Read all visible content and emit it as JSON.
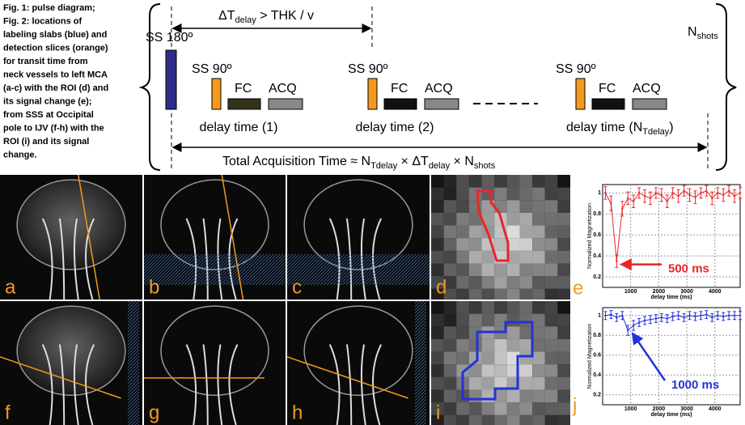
{
  "caption": {
    "lines": [
      "Fig. 1: pulse diagram;",
      "Fig. 2: locations of",
      "labeling slabs (blue) and",
      "detection slices (orange)",
      "for transit time from",
      "neck vessels to left MCA",
      "(a-c) with the ROI (d) and",
      "its signal change (e);",
      "from SSS at Occipital",
      "pole to IJV (f-h) with the",
      "ROI (i) and its signal",
      "change."
    ]
  },
  "pulse": {
    "ss180": "SS 180º",
    "delta": {
      "a": "ΔT",
      "sub": "delay",
      "b": " > THK / v"
    },
    "ss90": [
      "SS 90º",
      "SS 90º",
      "SS 90º"
    ],
    "fc": [
      "FC",
      "FC",
      "FC"
    ],
    "acq": [
      "ACQ",
      "ACQ",
      "ACQ"
    ],
    "delays": [
      "delay time (1)",
      "delay time (2)"
    ],
    "delay_n": {
      "a": "delay time (N",
      "sub": "Tdelay",
      "b": ")"
    },
    "nshots": {
      "a": "N",
      "sub": "shots"
    },
    "total": {
      "a": "Total Acquisition Time ≈ N",
      "s1": "Tdelay",
      "b": " × ΔT",
      "s2": "delay",
      "c": " × N",
      "s3": "shots"
    }
  },
  "panels": [
    "a",
    "b",
    "c",
    "d",
    "f",
    "g",
    "h",
    "i"
  ],
  "charts": [
    {
      "type": "line",
      "letter": "e",
      "ylabel": "Normalized Magnetization",
      "xlabel": "delay time (ms)",
      "color": "#e8262a",
      "annotation": "500 ms",
      "x": [
        100,
        300,
        500,
        700,
        900,
        1100,
        1300,
        1500,
        1700,
        1900,
        2100,
        2300,
        2500,
        2700,
        2900,
        3100,
        3300,
        3500,
        3700,
        3900,
        4100,
        4300,
        4500,
        4700,
        4900
      ],
      "values": [
        1.0,
        0.9,
        0.35,
        0.85,
        0.95,
        0.92,
        1.0,
        0.97,
        0.95,
        1.0,
        0.98,
        0.92,
        1.0,
        0.97,
        1.02,
        0.98,
        0.96,
        1.0,
        1.02,
        0.95,
        1.0,
        0.98,
        1.02,
        0.97,
        1.0
      ],
      "errors": [
        0.06,
        0.07,
        0.06,
        0.07,
        0.06,
        0.06,
        0.05,
        0.06,
        0.06,
        0.05,
        0.06,
        0.06,
        0.05,
        0.06,
        0.05,
        0.06,
        0.06,
        0.05,
        0.05,
        0.06,
        0.05,
        0.06,
        0.05,
        0.06,
        0.05
      ],
      "xlim": [
        0,
        4900
      ],
      "ylim": [
        0.1,
        1.08
      ],
      "xticks": [
        1000,
        2000,
        3000,
        4000
      ],
      "yticks": [
        0.2,
        0.4,
        0.6,
        0.8,
        1
      ],
      "grid": true
    },
    {
      "type": "line",
      "letter": "j",
      "ylabel": "Normalized Magnetization",
      "xlabel": "delay time (ms)",
      "color": "#2432d8",
      "annotation": "1000 ms",
      "x": [
        100,
        300,
        500,
        700,
        900,
        1100,
        1300,
        1500,
        1700,
        1900,
        2100,
        2300,
        2500,
        2700,
        2900,
        3100,
        3300,
        3500,
        3700,
        3900,
        4100,
        4300,
        4500,
        4700,
        4900
      ],
      "values": [
        1.0,
        1.01,
        0.98,
        1.0,
        0.85,
        0.9,
        0.93,
        0.95,
        0.96,
        0.97,
        0.98,
        0.97,
        0.99,
        1.0,
        0.98,
        1.0,
        0.99,
        1.0,
        1.01,
        0.98,
        1.0,
        0.99,
        1.0,
        1.0,
        1.0
      ],
      "errors": [
        0.04,
        0.04,
        0.04,
        0.04,
        0.05,
        0.05,
        0.04,
        0.04,
        0.04,
        0.04,
        0.04,
        0.04,
        0.04,
        0.04,
        0.04,
        0.04,
        0.04,
        0.04,
        0.04,
        0.04,
        0.04,
        0.04,
        0.04,
        0.04,
        0.04
      ],
      "xlim": [
        0,
        4900
      ],
      "ylim": [
        0.1,
        1.08
      ],
      "xticks": [
        1000,
        2000,
        3000,
        4000
      ],
      "yticks": [
        0.2,
        0.4,
        0.6,
        0.8,
        1
      ],
      "grid": true
    }
  ]
}
